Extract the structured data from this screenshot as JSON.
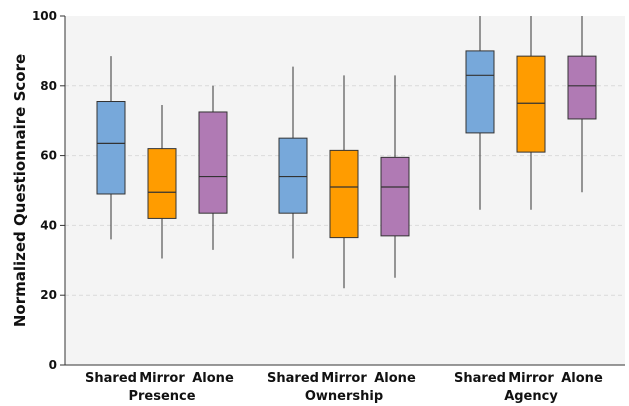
{
  "chart_data": {
    "type": "box",
    "title": "",
    "xlabel": "",
    "ylabel": "Normalized Questionnaire Score",
    "ylim": [
      0,
      100
    ],
    "yticks": [
      0,
      20,
      40,
      60,
      80,
      100
    ],
    "grid": true,
    "groups": [
      "Presence",
      "Ownership",
      "Agency"
    ],
    "conditions": [
      "Shared",
      "Mirror",
      "Alone"
    ],
    "colors": {
      "Shared": "#77A8DA",
      "Mirror": "#FF9C00",
      "Alone": "#B07AB4",
      "background": "#F4F4F4",
      "grid": "#DADADA",
      "outline": "#333333"
    },
    "boxes": [
      {
        "group": "Presence",
        "condition": "Shared",
        "min": 36,
        "q1": 49,
        "median": 63.5,
        "q3": 75.5,
        "max": 88.5
      },
      {
        "group": "Presence",
        "condition": "Mirror",
        "min": 30.5,
        "q1": 42,
        "median": 49.5,
        "q3": 62,
        "max": 74.5
      },
      {
        "group": "Presence",
        "condition": "Alone",
        "min": 33,
        "q1": 43.5,
        "median": 54,
        "q3": 72.5,
        "max": 80
      },
      {
        "group": "Ownership",
        "condition": "Shared",
        "min": 30.5,
        "q1": 43.5,
        "median": 54,
        "q3": 65,
        "max": 85.5
      },
      {
        "group": "Ownership",
        "condition": "Mirror",
        "min": 22,
        "q1": 36.5,
        "median": 51,
        "q3": 61.5,
        "max": 83
      },
      {
        "group": "Ownership",
        "condition": "Alone",
        "min": 25,
        "q1": 37,
        "median": 51,
        "q3": 59.5,
        "max": 83
      },
      {
        "group": "Agency",
        "condition": "Shared",
        "min": 44.5,
        "q1": 66.5,
        "median": 83,
        "q3": 90,
        "max": 100
      },
      {
        "group": "Agency",
        "condition": "Mirror",
        "min": 44.5,
        "q1": 61,
        "median": 75,
        "q3": 88.5,
        "max": 100
      },
      {
        "group": "Agency",
        "condition": "Alone",
        "min": 49.5,
        "q1": 70.5,
        "median": 80,
        "q3": 88.5,
        "max": 100
      }
    ]
  }
}
